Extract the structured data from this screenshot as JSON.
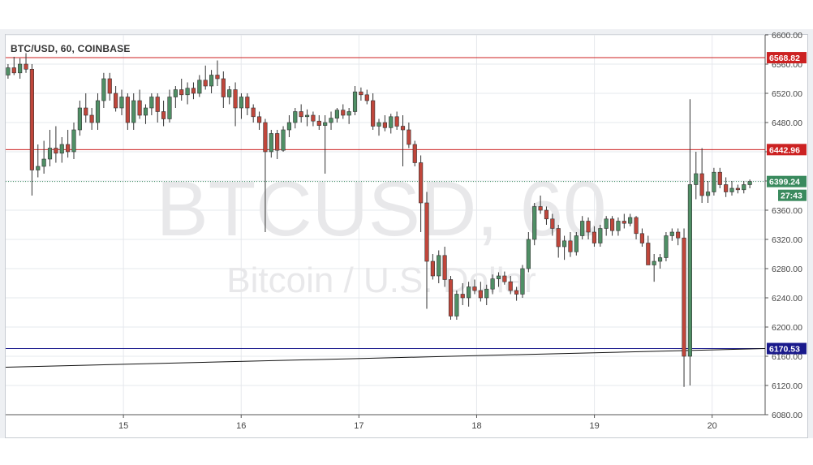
{
  "title": "BTC/USD, 60, COINBASE",
  "watermark": {
    "symbol": "BTCUSD, 60",
    "description": "Bitcoin / U.S. Dollar"
  },
  "chart_data": {
    "type": "candlestick",
    "ylim": [
      6080,
      6600
    ],
    "y_ticks": [
      "6600.00",
      "6560.00",
      "6520.00",
      "6480.00",
      "6440.00",
      "6400.00",
      "6360.00",
      "6320.00",
      "6280.00",
      "6240.00",
      "6200.00",
      "6160.00",
      "6120.00",
      "6080.00"
    ],
    "x_ticks": [
      {
        "label": "15",
        "day": 1
      },
      {
        "label": "16",
        "day": 2
      },
      {
        "label": "17",
        "day": 3
      },
      {
        "label": "18",
        "day": 4
      },
      {
        "label": "19",
        "day": 5
      },
      {
        "label": "20",
        "day": 6
      }
    ],
    "x_range_days": [
      0.0,
      6.45
    ],
    "levels": [
      {
        "label": "6568.82",
        "value": 6568.82,
        "color": "#cc2222"
      },
      {
        "label": "6442.96",
        "value": 6442.96,
        "color": "#cc2222"
      },
      {
        "label": "6170.53",
        "value": 6170.53,
        "color": "#1a1a8c"
      }
    ],
    "last_price": {
      "label": "6399.24",
      "value": 6399.24,
      "countdown": "27:43",
      "color": "#3a8a5e"
    },
    "trendline": {
      "from": {
        "day": 0.0,
        "value": 6145
      },
      "to": {
        "day": 6.45,
        "value": 6170.53
      }
    },
    "colors": {
      "up": "#4f8f65",
      "down": "#c0463b"
    },
    "candles": [
      [
        6545,
        6560,
        6540,
        6555
      ],
      [
        6555,
        6570,
        6545,
        6548
      ],
      [
        6548,
        6568,
        6540,
        6560
      ],
      [
        6560,
        6575,
        6548,
        6553
      ],
      [
        6553,
        6560,
        6380,
        6415
      ],
      [
        6415,
        6450,
        6405,
        6420
      ],
      [
        6420,
        6455,
        6410,
        6430
      ],
      [
        6430,
        6470,
        6420,
        6445
      ],
      [
        6445,
        6475,
        6425,
        6438
      ],
      [
        6438,
        6460,
        6425,
        6450
      ],
      [
        6450,
        6470,
        6432,
        6440
      ],
      [
        6440,
        6480,
        6430,
        6470
      ],
      [
        6470,
        6510,
        6462,
        6500
      ],
      [
        6500,
        6520,
        6480,
        6490
      ],
      [
        6490,
        6500,
        6470,
        6480
      ],
      [
        6480,
        6520,
        6470,
        6510
      ],
      [
        6510,
        6548,
        6500,
        6540
      ],
      [
        6540,
        6548,
        6510,
        6520
      ],
      [
        6520,
        6530,
        6495,
        6500
      ],
      [
        6500,
        6525,
        6490,
        6515
      ],
      [
        6515,
        6520,
        6470,
        6480
      ],
      [
        6480,
        6520,
        6470,
        6510
      ],
      [
        6510,
        6525,
        6485,
        6490
      ],
      [
        6490,
        6505,
        6478,
        6500
      ],
      [
        6500,
        6520,
        6490,
        6515
      ],
      [
        6515,
        6520,
        6480,
        6495
      ],
      [
        6495,
        6510,
        6475,
        6485
      ],
      [
        6485,
        6525,
        6480,
        6515
      ],
      [
        6515,
        6530,
        6500,
        6525
      ],
      [
        6525,
        6540,
        6510,
        6518
      ],
      [
        6518,
        6535,
        6505,
        6527
      ],
      [
        6527,
        6535,
        6512,
        6520
      ],
      [
        6520,
        6545,
        6515,
        6538
      ],
      [
        6538,
        6558,
        6525,
        6530
      ],
      [
        6530,
        6552,
        6520,
        6545
      ],
      [
        6545,
        6565,
        6530,
        6540
      ],
      [
        6540,
        6550,
        6500,
        6515
      ],
      [
        6515,
        6530,
        6505,
        6525
      ],
      [
        6525,
        6535,
        6475,
        6500
      ],
      [
        6500,
        6520,
        6485,
        6515
      ],
      [
        6515,
        6520,
        6490,
        6500
      ],
      [
        6500,
        6505,
        6480,
        6488
      ],
      [
        6488,
        6495,
        6470,
        6480
      ],
      [
        6480,
        6485,
        6330,
        6440
      ],
      [
        6440,
        6470,
        6432,
        6465
      ],
      [
        6465,
        6470,
        6430,
        6442
      ],
      [
        6442,
        6475,
        6440,
        6470
      ],
      [
        6470,
        6490,
        6460,
        6480
      ],
      [
        6480,
        6500,
        6472,
        6495
      ],
      [
        6495,
        6505,
        6480,
        6488
      ],
      [
        6488,
        6498,
        6475,
        6490
      ],
      [
        6490,
        6495,
        6475,
        6482
      ],
      [
        6482,
        6490,
        6470,
        6476
      ],
      [
        6476,
        6490,
        6410,
        6480
      ],
      [
        6480,
        6495,
        6470,
        6486
      ],
      [
        6486,
        6500,
        6480,
        6497
      ],
      [
        6497,
        6505,
        6485,
        6490
      ],
      [
        6490,
        6500,
        6478,
        6495
      ],
      [
        6495,
        6530,
        6490,
        6522
      ],
      [
        6522,
        6528,
        6510,
        6518
      ],
      [
        6518,
        6525,
        6505,
        6510
      ],
      [
        6510,
        6520,
        6470,
        6475
      ],
      [
        6475,
        6485,
        6462,
        6480
      ],
      [
        6480,
        6490,
        6468,
        6473
      ],
      [
        6473,
        6492,
        6465,
        6488
      ],
      [
        6488,
        6495,
        6470,
        6475
      ],
      [
        6475,
        6490,
        6420,
        6470
      ],
      [
        6470,
        6480,
        6445,
        6450
      ],
      [
        6450,
        6455,
        6420,
        6425
      ],
      [
        6425,
        6435,
        6330,
        6370
      ],
      [
        6370,
        6385,
        6225,
        6290
      ],
      [
        6290,
        6300,
        6265,
        6270
      ],
      [
        6270,
        6305,
        6260,
        6298
      ],
      [
        6298,
        6310,
        6255,
        6265
      ],
      [
        6265,
        6270,
        6210,
        6215
      ],
      [
        6215,
        6250,
        6210,
        6245
      ],
      [
        6245,
        6260,
        6230,
        6240
      ],
      [
        6240,
        6262,
        6228,
        6255
      ],
      [
        6255,
        6265,
        6245,
        6250
      ],
      [
        6250,
        6262,
        6235,
        6240
      ],
      [
        6240,
        6258,
        6230,
        6252
      ],
      [
        6252,
        6272,
        6245,
        6266
      ],
      [
        6266,
        6275,
        6255,
        6270
      ],
      [
        6270,
        6276,
        6258,
        6262
      ],
      [
        6262,
        6270,
        6245,
        6250
      ],
      [
        6250,
        6255,
        6236,
        6245
      ],
      [
        6245,
        6285,
        6240,
        6280
      ],
      [
        6280,
        6330,
        6275,
        6320
      ],
      [
        6320,
        6370,
        6312,
        6365
      ],
      [
        6365,
        6380,
        6355,
        6360
      ],
      [
        6360,
        6365,
        6340,
        6348
      ],
      [
        6348,
        6355,
        6325,
        6335
      ],
      [
        6335,
        6340,
        6295,
        6310
      ],
      [
        6310,
        6325,
        6292,
        6318
      ],
      [
        6318,
        6330,
        6296,
        6303
      ],
      [
        6303,
        6330,
        6298,
        6325
      ],
      [
        6325,
        6352,
        6320,
        6345
      ],
      [
        6345,
        6350,
        6320,
        6330
      ],
      [
        6330,
        6338,
        6310,
        6315
      ],
      [
        6315,
        6340,
        6310,
        6335
      ],
      [
        6335,
        6352,
        6325,
        6348
      ],
      [
        6348,
        6352,
        6325,
        6332
      ],
      [
        6332,
        6350,
        6325,
        6345
      ],
      [
        6345,
        6355,
        6335,
        6342
      ],
      [
        6342,
        6355,
        6338,
        6350
      ],
      [
        6350,
        6352,
        6320,
        6328
      ],
      [
        6328,
        6335,
        6310,
        6315
      ],
      [
        6315,
        6325,
        6290,
        6285
      ],
      [
        6285,
        6300,
        6262,
        6290
      ],
      [
        6290,
        6300,
        6280,
        6295
      ],
      [
        6295,
        6330,
        6290,
        6325
      ],
      [
        6325,
        6335,
        6318,
        6330
      ],
      [
        6330,
        6335,
        6312,
        6322
      ],
      [
        6322,
        6335,
        6118,
        6160
      ],
      [
        6160,
        6512,
        6120,
        6395
      ],
      [
        6395,
        6440,
        6375,
        6410
      ],
      [
        6410,
        6445,
        6370,
        6380
      ],
      [
        6380,
        6400,
        6370,
        6385
      ],
      [
        6385,
        6418,
        6380,
        6412
      ],
      [
        6412,
        6418,
        6390,
        6395
      ],
      [
        6395,
        6405,
        6378,
        6385
      ],
      [
        6385,
        6400,
        6380,
        6390
      ],
      [
        6390,
        6395,
        6383,
        6388
      ],
      [
        6388,
        6400,
        6383,
        6395
      ],
      [
        6395,
        6402,
        6390,
        6399.24
      ]
    ]
  }
}
